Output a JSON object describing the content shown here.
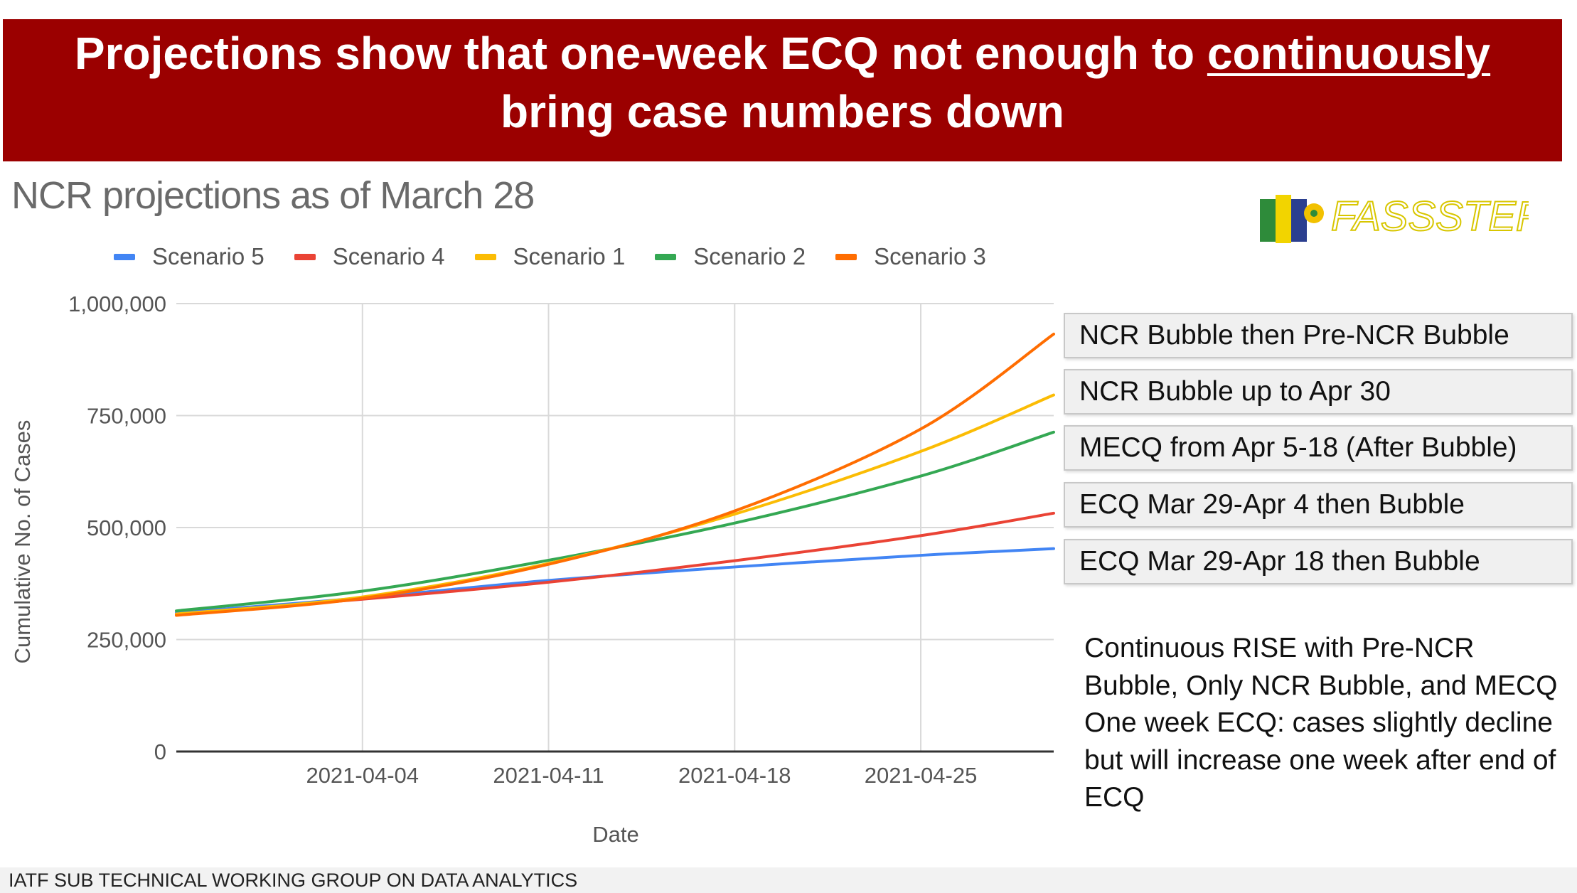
{
  "banner": {
    "line1_prefix": "Projections show that one-week ECQ not enough to ",
    "line1_underlined": "continuously",
    "line2": "bring case numbers down"
  },
  "logo": {
    "text": "FASSSTER",
    "name": "fassster-logo"
  },
  "scenario_labels": [
    "NCR Bubble then Pre-NCR Bubble",
    "NCR Bubble up to Apr 30",
    "MECQ from Apr 5-18 (After Bubble)",
    "ECQ Mar 29-Apr 4 then Bubble",
    "ECQ Mar 29-Apr 18 then Bubble"
  ],
  "note": [
    "Continuous RISE with Pre-NCR Bubble, Only NCR Bubble, and MECQ",
    "One week ECQ: cases slightly decline but will increase one week after end of ECQ"
  ],
  "footer": "IATF SUB TECHNICAL WORKING GROUP ON DATA ANALYTICS",
  "chart_data": {
    "type": "line",
    "title": "NCR projections as of March 28",
    "xlabel": "Date",
    "ylabel": "Cumulative No. of Cases",
    "ylim": [
      0,
      1000000
    ],
    "yticks": [
      0,
      250000,
      500000,
      750000,
      1000000
    ],
    "ytick_labels": [
      "0",
      "250,000",
      "500,000",
      "750,000",
      "1,000,000"
    ],
    "xlim": [
      "2021-03-28",
      "2021-04-30"
    ],
    "xticks": [
      "2021-04-04",
      "2021-04-11",
      "2021-04-18",
      "2021-04-25"
    ],
    "grid": true,
    "legend_position": "top-left",
    "x": [
      "2021-03-28",
      "2021-04-04",
      "2021-04-11",
      "2021-04-18",
      "2021-04-25",
      "2021-04-30"
    ],
    "series": [
      {
        "name": "Scenario 5",
        "color": "#4285f4",
        "values": [
          310000,
          343000,
          382000,
          412000,
          438000,
          453000
        ]
      },
      {
        "name": "Scenario 4",
        "color": "#ea4335",
        "values": [
          307000,
          340000,
          378000,
          426000,
          482000,
          532000
        ]
      },
      {
        "name": "Scenario 1",
        "color": "#fbbc04",
        "values": [
          307000,
          345000,
          420000,
          530000,
          670000,
          796000
        ]
      },
      {
        "name": "Scenario 2",
        "color": "#34a853",
        "values": [
          314000,
          358000,
          427000,
          510000,
          615000,
          713000
        ]
      },
      {
        "name": "Scenario 3",
        "color": "#ff6d01",
        "values": [
          304000,
          342000,
          418000,
          537000,
          720000,
          932000
        ]
      }
    ]
  }
}
